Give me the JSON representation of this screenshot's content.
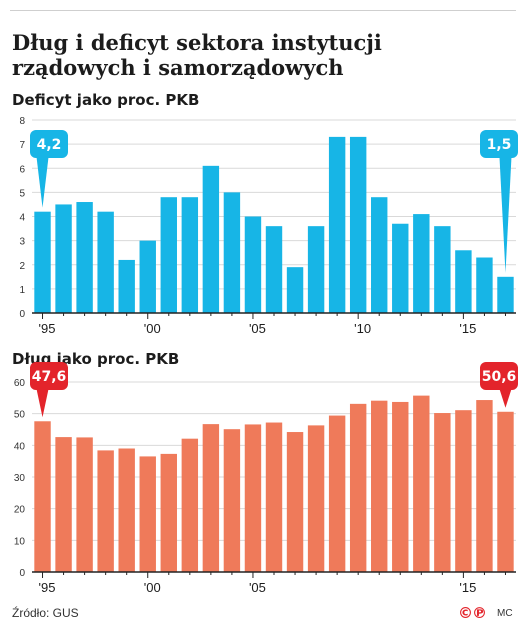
{
  "title": "Dług i deficyt sektora instytucji rządowych i samorządowych",
  "source": "Źródło: GUS",
  "logo": "©℗",
  "author": "MC",
  "colors": {
    "deficit": "#17b5e6",
    "debt": "#ef7a5a",
    "debt_callout": "#e3242b",
    "axis": "#333333",
    "grid": "#d9d9d9"
  },
  "chart_data": [
    {
      "type": "bar",
      "title": "Deficyt jako proc. PKB",
      "x": [
        1995,
        1996,
        1997,
        1998,
        1999,
        2000,
        2001,
        2002,
        2003,
        2004,
        2005,
        2006,
        2007,
        2008,
        2009,
        2010,
        2011,
        2012,
        2013,
        2014,
        2015,
        2016,
        2017
      ],
      "values": [
        4.2,
        4.5,
        4.6,
        4.2,
        2.2,
        3.0,
        4.8,
        4.8,
        6.1,
        5.0,
        4.0,
        3.6,
        1.9,
        3.6,
        7.3,
        7.3,
        4.8,
        3.7,
        4.1,
        3.6,
        2.6,
        2.3,
        1.5
      ],
      "ylim": [
        0,
        8
      ],
      "yticks": [
        "0",
        "1",
        "2",
        "3",
        "4",
        "5",
        "6",
        "7",
        "8"
      ],
      "xtick_labels": [
        "'95",
        "'00",
        "'05",
        "'10",
        "'15"
      ],
      "xtick_years": [
        1995,
        2000,
        2005,
        2010,
        2015
      ],
      "callouts": [
        {
          "year": 1995,
          "label": "4,2"
        },
        {
          "year": 2017,
          "label": "1,5"
        }
      ],
      "grid": true
    },
    {
      "type": "bar",
      "title": "Dług jako proc. PKB",
      "x": [
        1995,
        1996,
        1997,
        1998,
        1999,
        2000,
        2001,
        2002,
        2003,
        2004,
        2005,
        2006,
        2007,
        2008,
        2009,
        2010,
        2011,
        2012,
        2013,
        2014,
        2015,
        2016,
        2017
      ],
      "values": [
        47.6,
        42.6,
        42.5,
        38.4,
        39.0,
        36.5,
        37.3,
        42.1,
        46.7,
        45.1,
        46.6,
        47.2,
        44.2,
        46.3,
        49.4,
        53.1,
        54.1,
        53.7,
        55.7,
        50.2,
        51.1,
        54.3,
        50.6
      ],
      "ylim": [
        0,
        60
      ],
      "yticks": [
        "0",
        "10",
        "20",
        "30",
        "40",
        "50",
        "60"
      ],
      "xtick_labels": [
        "'95",
        "'00",
        "'05",
        "'15"
      ],
      "xtick_years": [
        1995,
        2000,
        2005,
        2015
      ],
      "callouts": [
        {
          "year": 1995,
          "label": "47,6"
        },
        {
          "year": 2017,
          "label": "50,6"
        }
      ],
      "grid": true
    }
  ]
}
